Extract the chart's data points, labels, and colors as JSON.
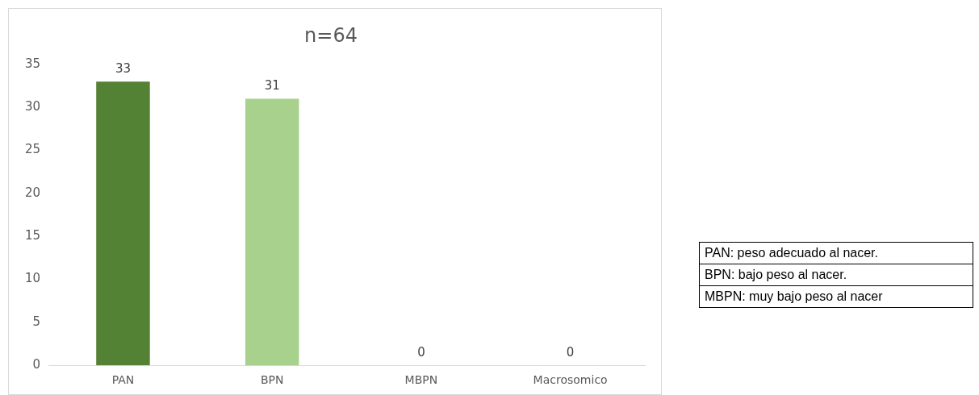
{
  "chart_data": {
    "type": "bar",
    "title": "n=64",
    "categories": [
      "PAN",
      "BPN",
      "MBPN",
      "Macrosomico"
    ],
    "values": [
      33,
      31,
      0,
      0
    ],
    "colors": [
      "#548235",
      "#a9d18e",
      "#a9d18e",
      "#a9d18e"
    ],
    "ylim": [
      0,
      35
    ],
    "yticks": [
      0,
      5,
      10,
      15,
      20,
      25,
      30,
      35
    ],
    "grid": false,
    "legend": false,
    "data_labels": true,
    "annotations": [
      "PAN: peso adecuado al nacer.",
      "BPN: bajo peso al nacer.",
      "MBPN: muy bajo peso al nacer"
    ]
  }
}
